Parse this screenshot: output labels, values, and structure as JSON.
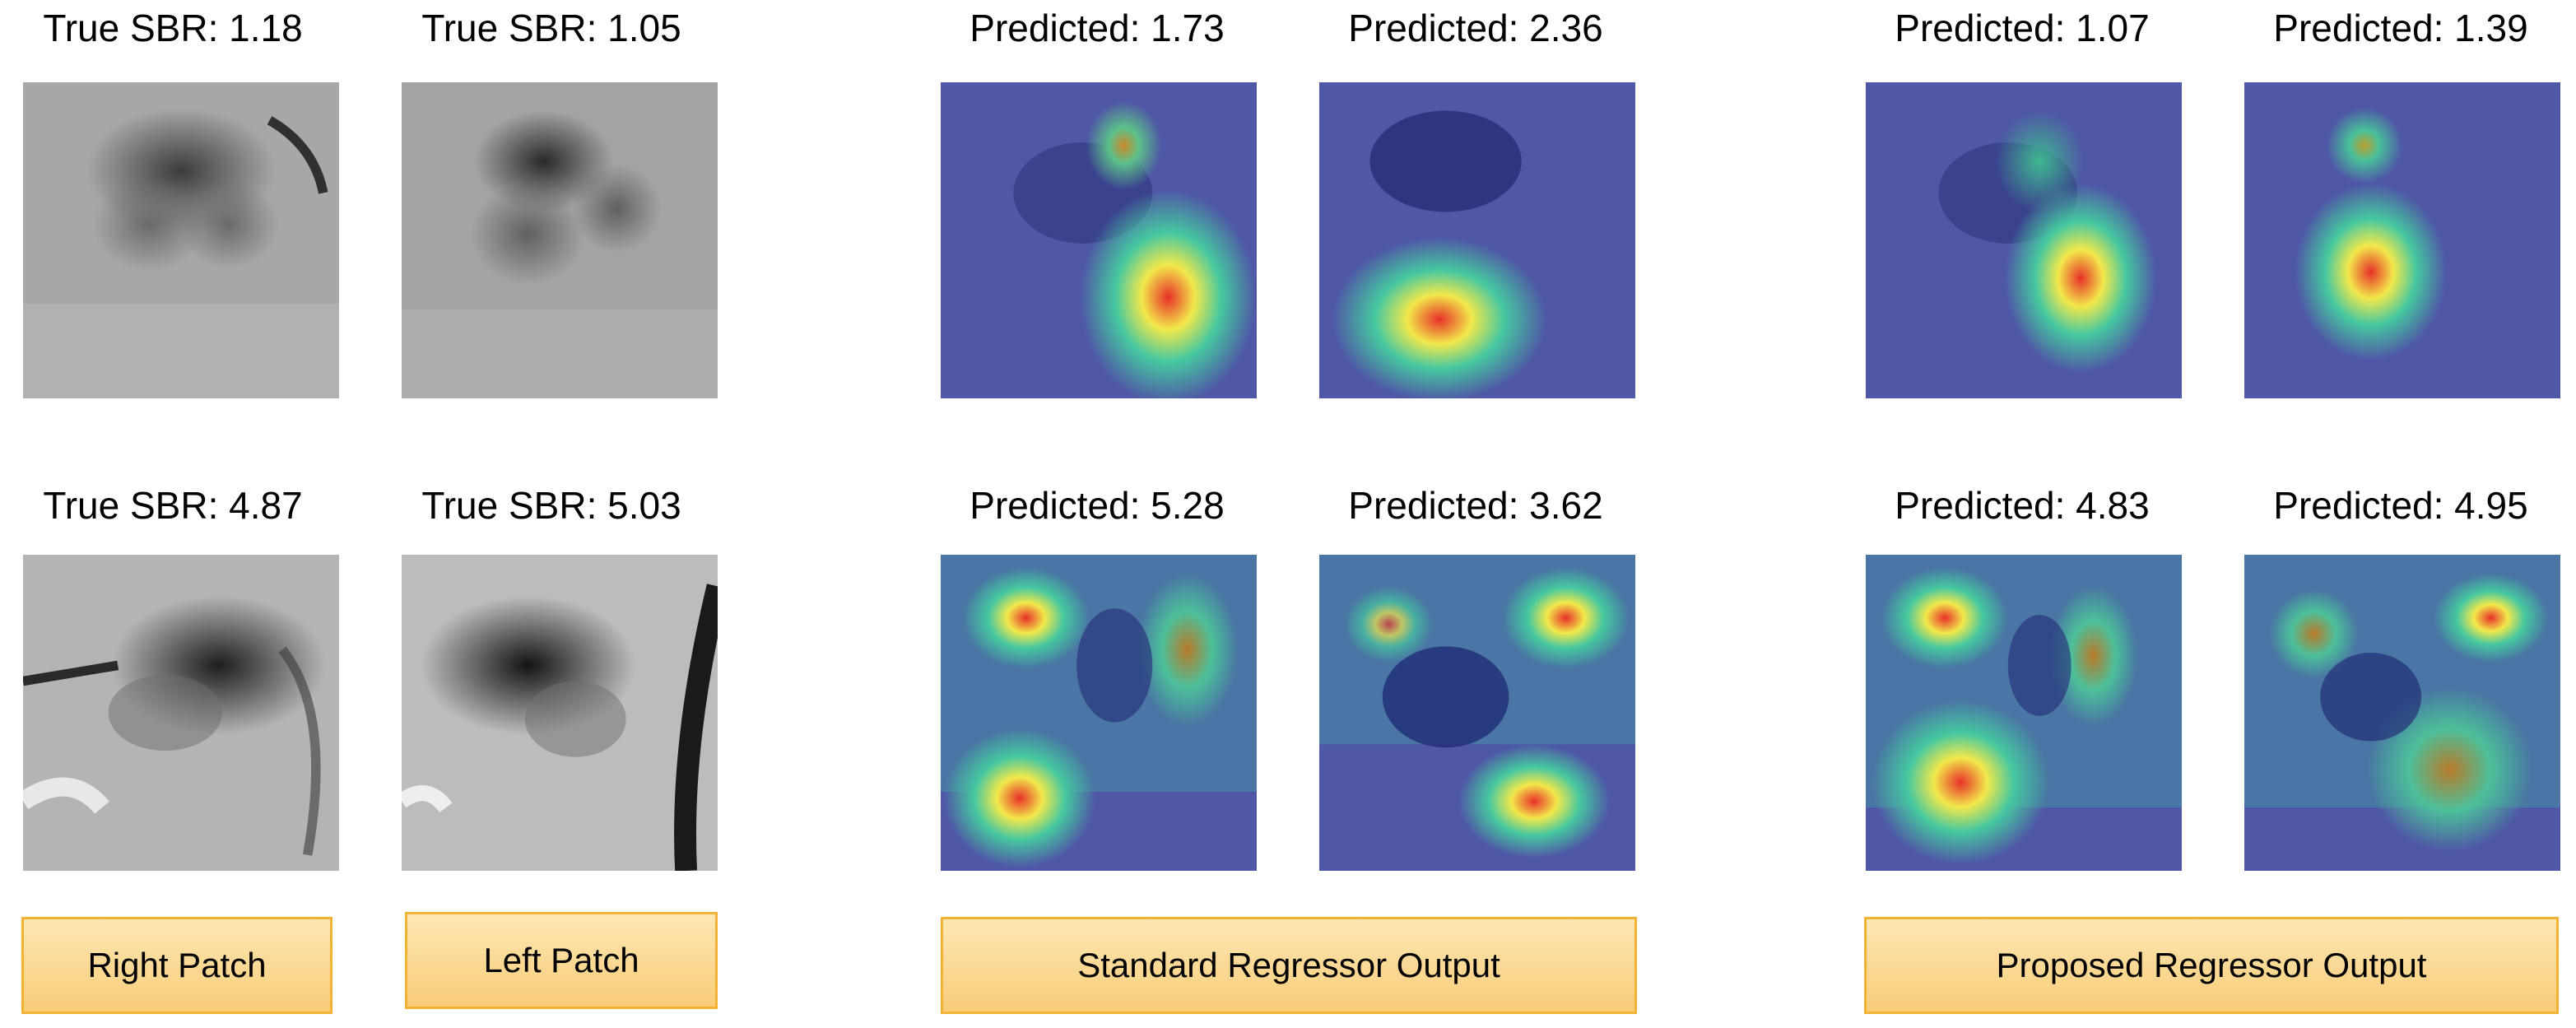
{
  "rows": [
    {
      "labels": [
        "True SBR: 1.18",
        "True SBR: 1.05",
        "Predicted: 1.73",
        "Predicted: 2.36",
        "Predicted: 1.07",
        "Predicted: 1.39"
      ],
      "panels": [
        "grayscale-mri-patch",
        "grayscale-mri-patch",
        "attention-heatmap-overlay",
        "attention-heatmap-overlay",
        "attention-heatmap-overlay",
        "attention-heatmap-overlay"
      ]
    },
    {
      "labels": [
        "True SBR: 4.87",
        "True SBR: 5.03",
        "Predicted: 5.28",
        "Predicted: 3.62",
        "Predicted: 4.83",
        "Predicted: 4.95"
      ],
      "panels": [
        "grayscale-mri-patch",
        "grayscale-mri-patch",
        "attention-heatmap-overlay",
        "attention-heatmap-overlay",
        "attention-heatmap-overlay",
        "attention-heatmap-overlay"
      ]
    }
  ],
  "captions": {
    "right": "Right Patch",
    "left": "Left Patch",
    "standard": "Standard Regressor Output",
    "proposed": "Proposed Regressor Output"
  },
  "colors": {
    "caption_fill": "#fcd88f",
    "caption_border": "#f2b233",
    "heatmap_base": "#4a53a8",
    "heatmap_hot": "#e0302a"
  }
}
